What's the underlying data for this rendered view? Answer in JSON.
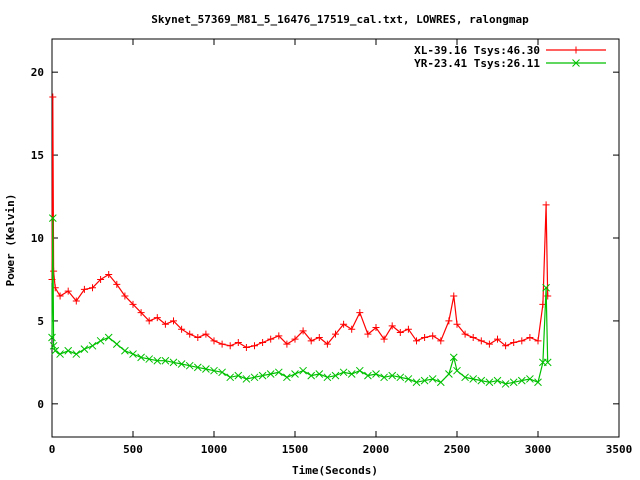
{
  "chart_data": {
    "type": "line",
    "title": "Skynet_57369_M81_5_16476_17519_cal.txt, LOWRES, ralongmap",
    "xlabel": "Time(Seconds)",
    "ylabel": "Power (Kelvin)",
    "xlim": [
      0,
      3500
    ],
    "ylim": [
      -2,
      22
    ],
    "xticks": [
      0,
      500,
      1000,
      1500,
      2000,
      2500,
      3000,
      3500
    ],
    "yticks": [
      0,
      5,
      10,
      15,
      20
    ],
    "grid": false,
    "legend_position": "top-right",
    "series": [
      {
        "name": "XL-39.16 Tsys:46.30",
        "color": "#ff0000",
        "marker": "plus",
        "x": [
          0,
          5,
          10,
          20,
          50,
          100,
          150,
          200,
          250,
          300,
          350,
          400,
          450,
          500,
          550,
          600,
          650,
          700,
          750,
          800,
          850,
          900,
          950,
          1000,
          1050,
          1100,
          1150,
          1200,
          1250,
          1300,
          1350,
          1400,
          1450,
          1500,
          1550,
          1600,
          1650,
          1700,
          1750,
          1800,
          1850,
          1900,
          1950,
          2000,
          2050,
          2100,
          2150,
          2200,
          2250,
          2300,
          2350,
          2400,
          2450,
          2480,
          2500,
          2550,
          2600,
          2650,
          2700,
          2750,
          2800,
          2850,
          2900,
          2950,
          3000,
          3030,
          3050,
          3060
        ],
        "y": [
          7.5,
          18.5,
          8.0,
          7.0,
          6.5,
          6.8,
          6.2,
          6.9,
          7.0,
          7.5,
          7.8,
          7.2,
          6.5,
          6.0,
          5.5,
          5.0,
          5.2,
          4.8,
          5.0,
          4.5,
          4.2,
          4.0,
          4.2,
          3.8,
          3.6,
          3.5,
          3.7,
          3.4,
          3.5,
          3.7,
          3.9,
          4.1,
          3.6,
          3.9,
          4.4,
          3.8,
          4.0,
          3.6,
          4.2,
          4.8,
          4.5,
          5.5,
          4.2,
          4.6,
          3.9,
          4.7,
          4.3,
          4.5,
          3.8,
          4.0,
          4.1,
          3.8,
          5.0,
          6.5,
          4.8,
          4.2,
          4.0,
          3.8,
          3.6,
          3.9,
          3.5,
          3.7,
          3.8,
          4.0,
          3.8,
          6.0,
          12.0,
          6.5
        ]
      },
      {
        "name": "YR-23.41 Tsys:26.11",
        "color": "#00c000",
        "marker": "cross",
        "x": [
          0,
          5,
          10,
          20,
          50,
          100,
          150,
          200,
          250,
          300,
          350,
          400,
          450,
          500,
          550,
          600,
          650,
          700,
          750,
          800,
          850,
          900,
          950,
          1000,
          1050,
          1100,
          1150,
          1200,
          1250,
          1300,
          1350,
          1400,
          1450,
          1500,
          1550,
          1600,
          1650,
          1700,
          1750,
          1800,
          1850,
          1900,
          1950,
          2000,
          2050,
          2100,
          2150,
          2200,
          2250,
          2300,
          2350,
          2400,
          2450,
          2480,
          2500,
          2550,
          2600,
          2650,
          2700,
          2750,
          2800,
          2850,
          2900,
          2950,
          3000,
          3030,
          3050,
          3060
        ],
        "y": [
          4.0,
          11.2,
          3.5,
          3.2,
          3.0,
          3.2,
          3.0,
          3.3,
          3.5,
          3.8,
          4.0,
          3.6,
          3.2,
          3.0,
          2.8,
          2.7,
          2.6,
          2.6,
          2.5,
          2.4,
          2.3,
          2.2,
          2.1,
          2.0,
          1.9,
          1.6,
          1.7,
          1.5,
          1.6,
          1.7,
          1.8,
          1.9,
          1.6,
          1.8,
          2.0,
          1.7,
          1.8,
          1.6,
          1.7,
          1.9,
          1.8,
          2.0,
          1.7,
          1.8,
          1.6,
          1.7,
          1.6,
          1.5,
          1.3,
          1.4,
          1.5,
          1.3,
          1.8,
          2.8,
          2.0,
          1.6,
          1.5,
          1.4,
          1.3,
          1.4,
          1.2,
          1.3,
          1.4,
          1.5,
          1.3,
          2.5,
          7.0,
          2.5
        ]
      }
    ]
  }
}
